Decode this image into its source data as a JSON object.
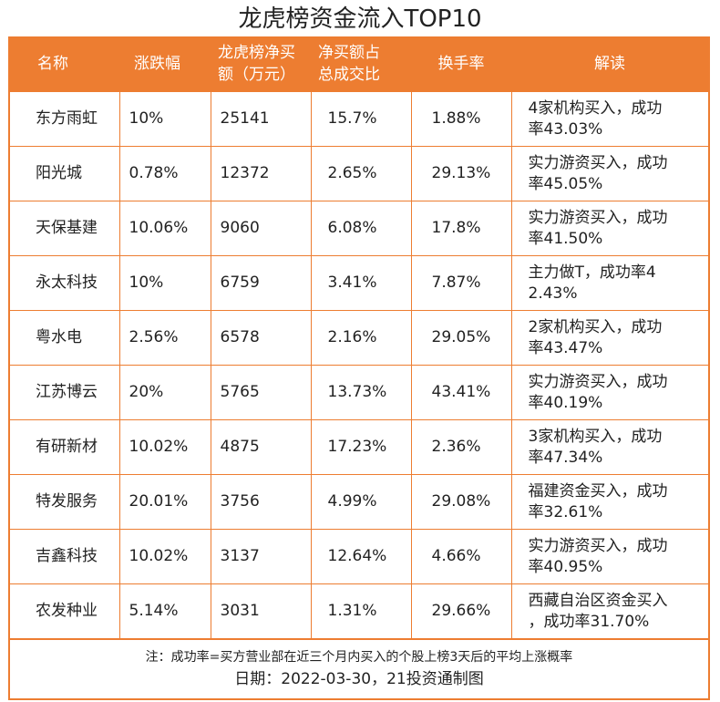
{
  "title": "龙虎榜资金流入TOP10",
  "columns": [
    "名称",
    "涨跌幅",
    "龙虎榜净买\n额（万元）",
    "净买额占\n总成交比",
    "换手率",
    "解读"
  ],
  "rows": [
    [
      "东方雨虹",
      "10%",
      "25141",
      "15.7%",
      "1.88%",
      "4家机构买入，成功\n率43.03%"
    ],
    [
      "阳光城",
      "0.78%",
      "12372",
      "2.65%",
      "29.13%",
      "实力游资买入，成功\n率45.05%"
    ],
    [
      "天保基建",
      "10.06%",
      "9060",
      "6.08%",
      "17.8%",
      "实力游资买入，成功\n率41.50%"
    ],
    [
      "永太科技",
      "10%",
      "6759",
      "3.41%",
      "7.87%",
      "主力做T，成功率4\n2.43%"
    ],
    [
      "粤水电",
      "2.56%",
      "6578",
      "2.16%",
      "29.05%",
      "2家机构买入，成功\n率43.47%"
    ],
    [
      "江苏博云",
      "20%",
      "5765",
      "13.73%",
      "43.41%",
      "实力游资买入，成功\n率40.19%"
    ],
    [
      "有研新材",
      "10.02%",
      "4875",
      "17.23%",
      "2.36%",
      "3家机构买入，成功\n率47.34%"
    ],
    [
      "特发服务",
      "20.01%",
      "3756",
      "4.99%",
      "29.08%",
      "福建资金买入，成功\n率32.61%"
    ],
    [
      "吉鑫科技",
      "10.02%",
      "3137",
      "12.64%",
      "4.66%",
      "实力游资买入，成功\n率40.95%"
    ],
    [
      "农发种业",
      "5.14%",
      "3031",
      "1.31%",
      "29.66%",
      "西藏自治区资金买入\n，成功率31.70%"
    ]
  ],
  "footer": {
    "note": "注：成功率=买方营业部在近三个月内买入的个股上榜3天后的平均上涨概率",
    "date": "日期：2022-03-30，21投资通制图"
  },
  "colors": {
    "accent": "#ED7D31"
  }
}
